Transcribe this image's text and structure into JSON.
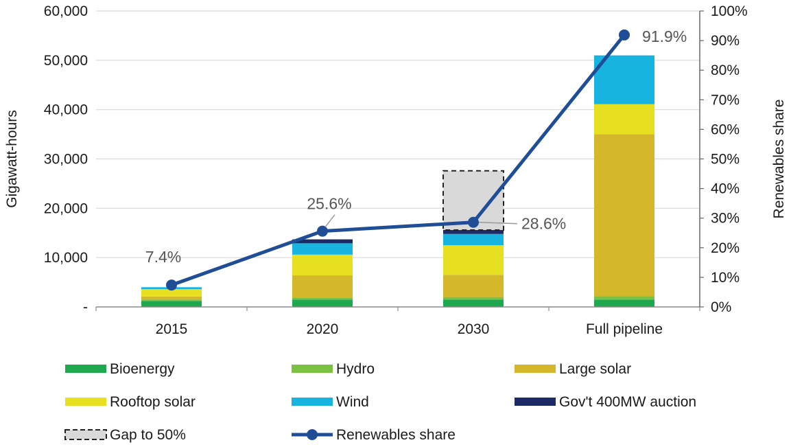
{
  "chart_data": {
    "type": "bar",
    "stacked": true,
    "categories": [
      "2015",
      "2020",
      "2030",
      "Full pipeline"
    ],
    "series": [
      {
        "name": "Bioenergy",
        "color": "#1fa94f",
        "values": [
          1200,
          1500,
          1500,
          1500
        ]
      },
      {
        "name": "Hydro",
        "color": "#7cc242",
        "values": [
          300,
          400,
          500,
          700
        ]
      },
      {
        "name": "Large solar",
        "color": "#d4b72a",
        "values": [
          600,
          4500,
          4500,
          32800
        ]
      },
      {
        "name": "Rooftop solar",
        "color": "#e6e020",
        "values": [
          1500,
          4200,
          6000,
          6100
        ]
      },
      {
        "name": "Wind",
        "color": "#18b4e0",
        "values": [
          400,
          2300,
          2300,
          9900
        ]
      },
      {
        "name": "Gov't 400MW auction",
        "color": "#1c2a66",
        "values": [
          0,
          800,
          800,
          0
        ]
      }
    ],
    "gap_series": {
      "name": "Gap to 50%",
      "color": "#d9d9d9",
      "values": [
        0,
        0,
        12000,
        0
      ]
    },
    "line_series": {
      "name": "Renewables share",
      "color": "#1f4e96",
      "axis": "right",
      "values": [
        7.4,
        25.6,
        28.6,
        91.9
      ],
      "labels": [
        "7.4%",
        "25.6%",
        "28.6%",
        "91.9%"
      ]
    },
    "ylabel": "Gigawatt-hours",
    "y2label": "Renewables share",
    "ylim": [
      0,
      60000
    ],
    "y2lim": [
      0,
      100
    ],
    "yticks": [
      "-",
      "10,000",
      "20,000",
      "30,000",
      "40,000",
      "50,000",
      "60,000"
    ],
    "y2ticks": [
      "0%",
      "10%",
      "20%",
      "30%",
      "40%",
      "50%",
      "60%",
      "70%",
      "80%",
      "90%",
      "100%"
    ],
    "grid": true,
    "legend_position": "bottom"
  }
}
